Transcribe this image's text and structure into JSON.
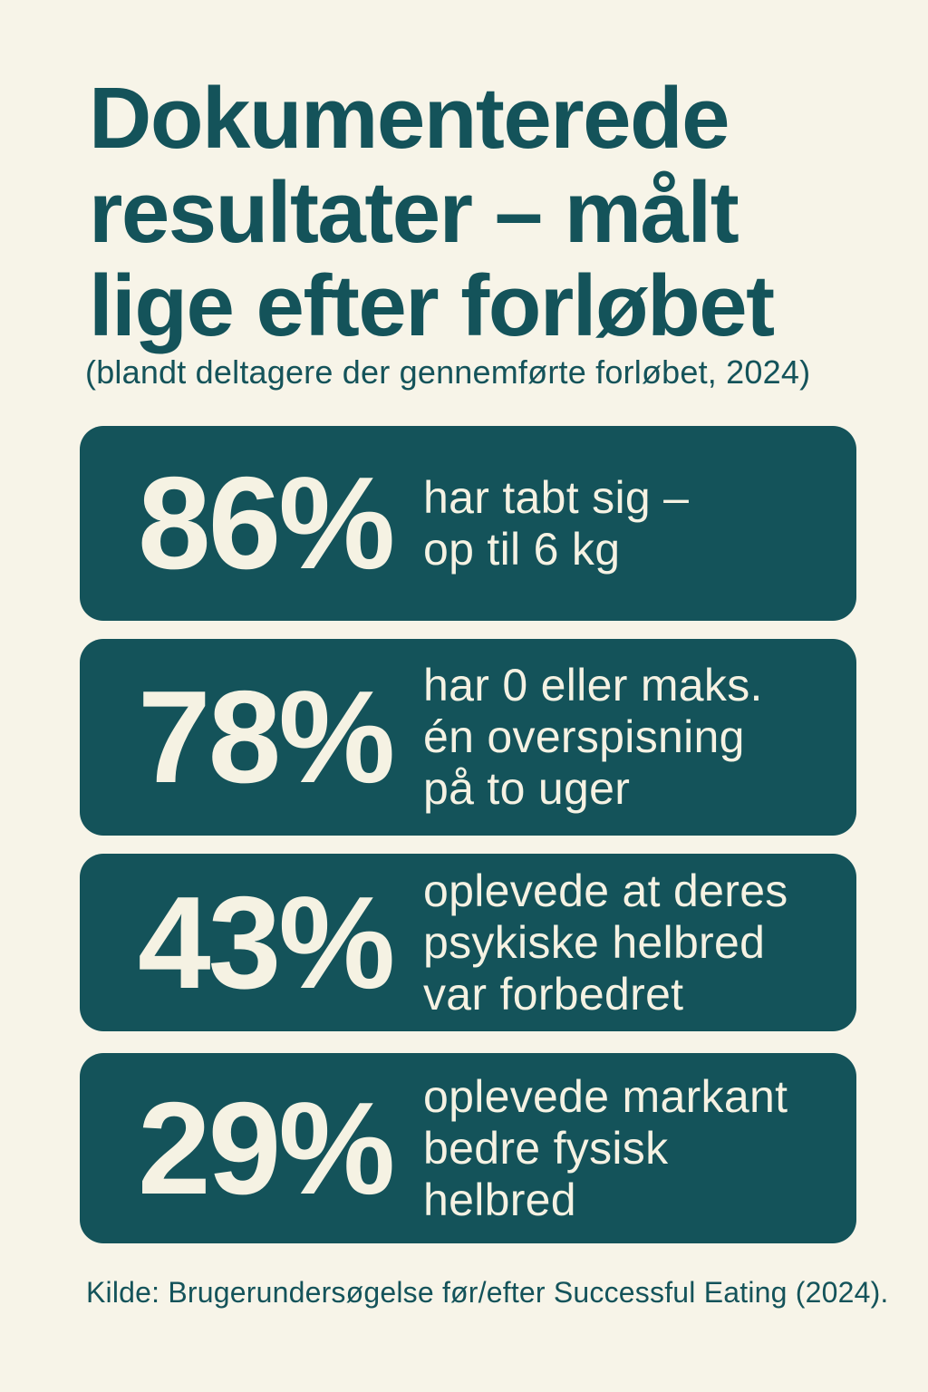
{
  "theme": {
    "page-bg": "#F7F4E8",
    "accent-teal": "#14535A",
    "card-text": "#F5F2E3"
  },
  "header": {
    "title_lines": [
      "Dokumenterede",
      "resultater – målt",
      "lige efter forløbet"
    ],
    "subtitle": "(blandt deltagere der gennemførte forløbet, 2024)"
  },
  "stats": [
    {
      "value": "86%",
      "label": "har tabt sig –\nop til 6 kg"
    },
    {
      "value": "78%",
      "label": "har 0 eller maks.\nén overspisning\npå to uger"
    },
    {
      "value": "43%",
      "label": "oplevede at deres\npsykiske helbred\nvar forbedret"
    },
    {
      "value": "29%",
      "label": "oplevede markant\nbedre fysisk\nhelbred"
    }
  ],
  "footer": {
    "source": "Kilde: Brugerundersøgelse før/efter Successful Eating (2024)."
  }
}
